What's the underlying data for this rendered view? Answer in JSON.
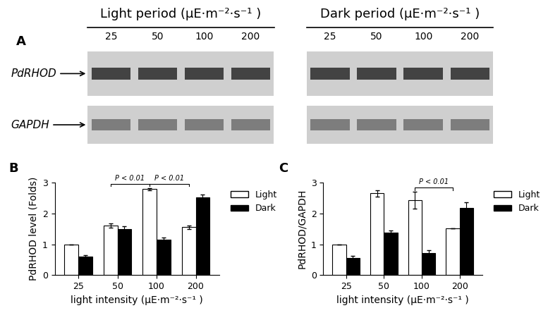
{
  "blot": {
    "panel_label": "A",
    "groups": [
      {
        "title": "Light period (μE·m⁻²·s⁻¹ )",
        "lanes": [
          "25",
          "50",
          "100",
          "200"
        ]
      },
      {
        "title": "Dark period (μE·m⁻²·s⁻¹ )",
        "lanes": [
          "25",
          "50",
          "100",
          "200"
        ]
      }
    ],
    "rows": [
      "PdRHOD",
      "GAPDH"
    ]
  },
  "chart_data": [
    {
      "type": "bar",
      "panel_label": "B",
      "categories": [
        "25",
        "50",
        "100",
        "200"
      ],
      "x_label": "light intensity (μE·m⁻²·s⁻¹ )",
      "y_label": "PdRHOD level (Folds)",
      "ylim": [
        0,
        3
      ],
      "yticks": [
        0,
        1,
        2,
        3
      ],
      "legend": "right",
      "series": [
        {
          "name": "Light",
          "color": "#ffffff",
          "values": [
            1.0,
            1.6,
            2.78,
            1.55
          ],
          "errors": [
            0,
            0.07,
            0.03,
            0.05
          ]
        },
        {
          "name": "Dark",
          "color": "#000000",
          "values": [
            0.6,
            1.48,
            1.15,
            2.52
          ],
          "errors": [
            0.04,
            0.1,
            0.06,
            0.08
          ]
        }
      ],
      "annotations": [
        {
          "text": "P < 0.01",
          "from": "50",
          "to": "100",
          "series": "Light"
        },
        {
          "text": "P < 0.01",
          "from": "100",
          "to": "200",
          "series": "Light"
        }
      ]
    },
    {
      "type": "bar",
      "panel_label": "C",
      "categories": [
        "25",
        "50",
        "100",
        "200"
      ],
      "x_label": "light intensity (μE·m⁻²·s⁻¹ )",
      "y_label": "PdRHOD/GAPDH",
      "ylim": [
        0,
        3
      ],
      "yticks": [
        0,
        1,
        2,
        3
      ],
      "legend": "right",
      "series": [
        {
          "name": "Light",
          "color": "#ffffff",
          "values": [
            1.0,
            2.65,
            2.42,
            1.52
          ],
          "errors": [
            0,
            0.1,
            0.27,
            0
          ]
        },
        {
          "name": "Dark",
          "color": "#000000",
          "values": [
            0.55,
            1.37,
            0.72,
            2.18
          ],
          "errors": [
            0.08,
            0.07,
            0.08,
            0.18
          ]
        }
      ],
      "annotations": [
        {
          "text": "P < 0.01",
          "from": "100",
          "to": "200",
          "series": "Light"
        }
      ]
    }
  ]
}
